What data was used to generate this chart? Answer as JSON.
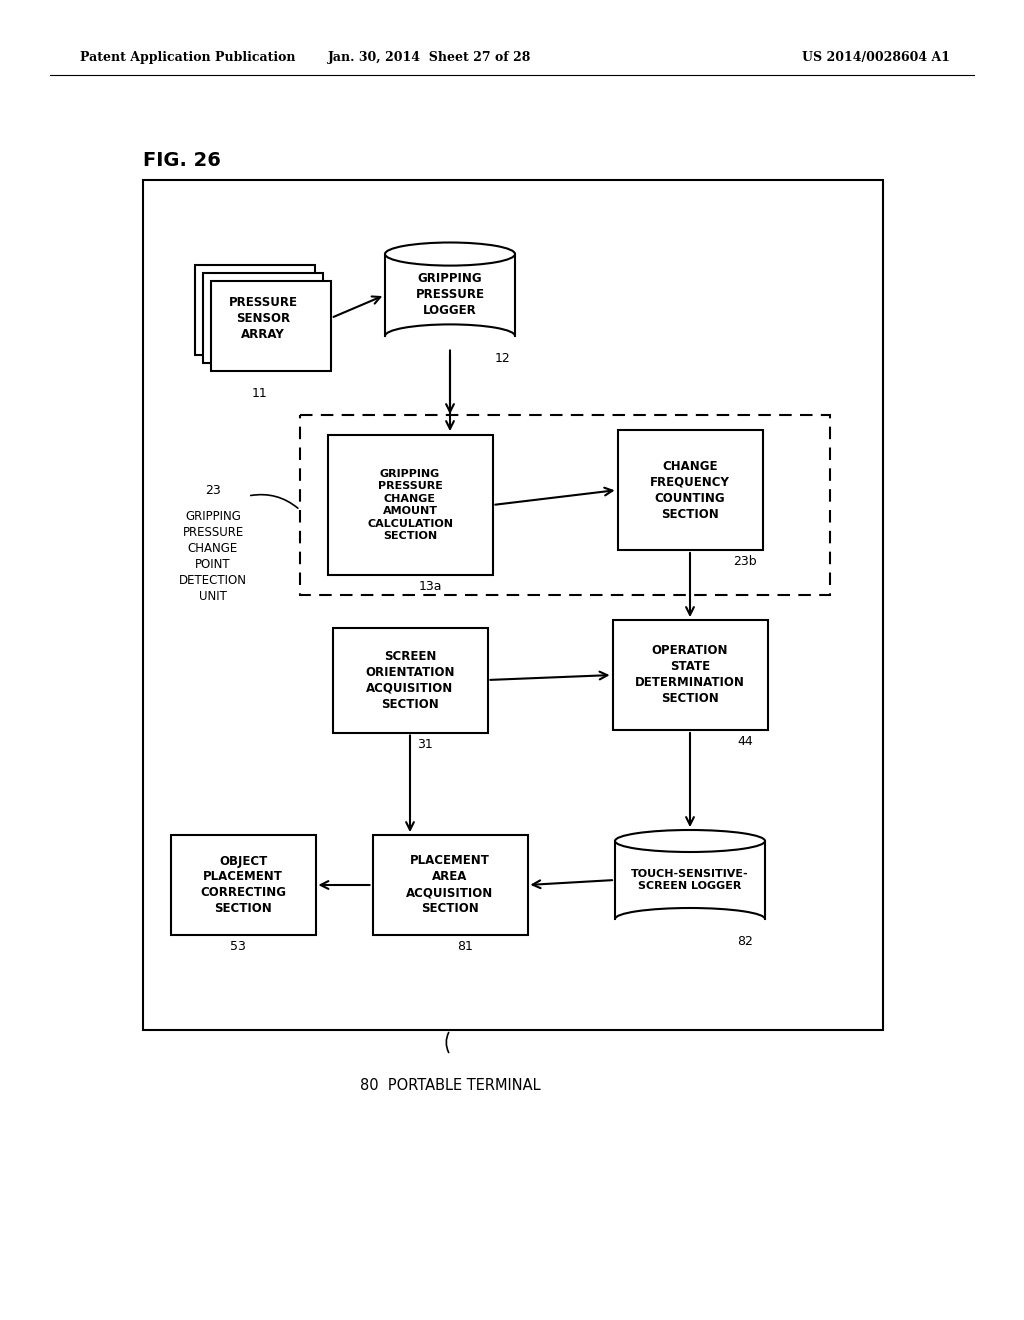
{
  "title": "FIG. 26",
  "header_left": "Patent Application Publication",
  "header_mid": "Jan. 30, 2014  Sheet 27 of 28",
  "header_right": "US 2014/0028604 A1",
  "footer": "80  PORTABLE TERMINAL",
  "bg_color": "#ffffff",
  "fig_width": 10.24,
  "fig_height": 13.2,
  "dpi": 100
}
